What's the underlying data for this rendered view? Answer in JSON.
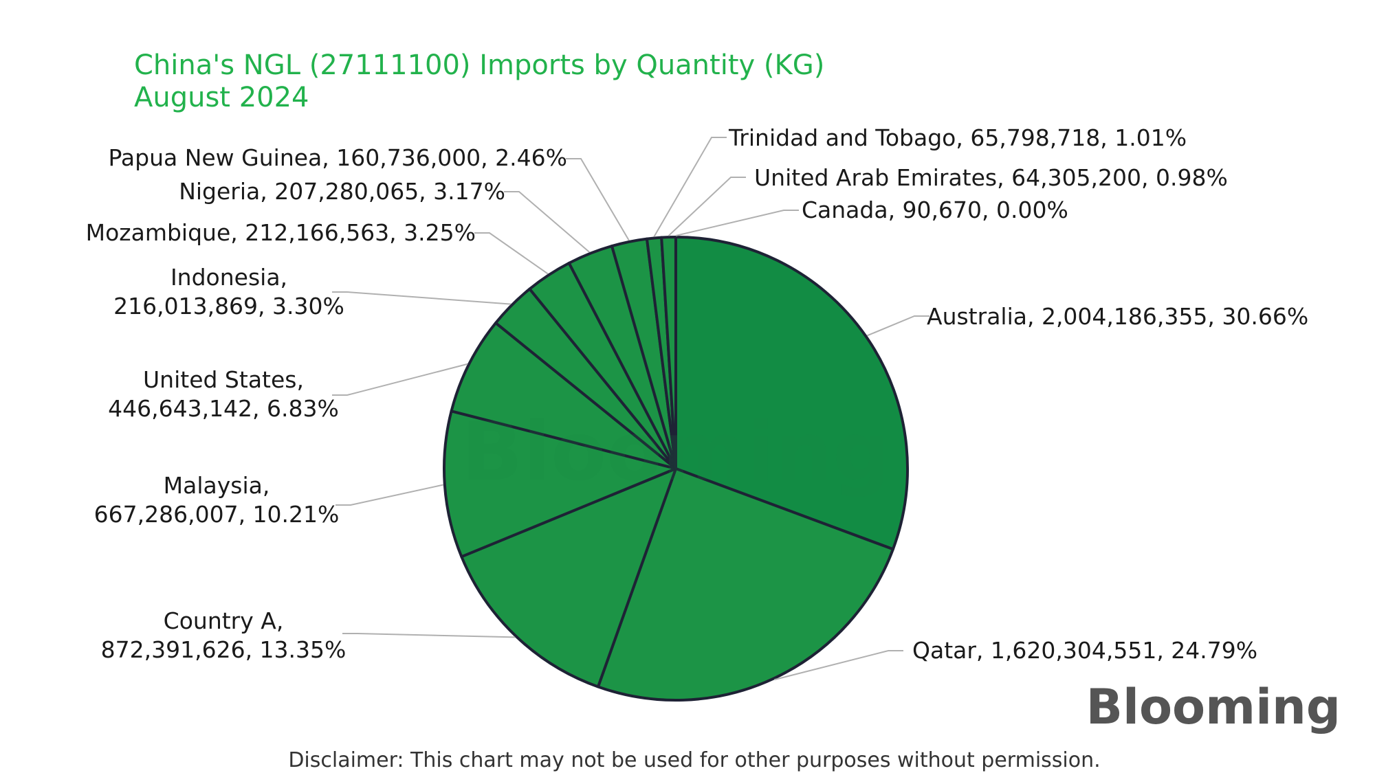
{
  "chart_data": {
    "type": "pie",
    "title": "China's NGL (27111100) Imports by Quantity (KG)",
    "subtitle": "August 2024",
    "slices": [
      {
        "label": "Australia",
        "value": 2004186355,
        "value_text": "2,004,186,355",
        "pct": "30.66%",
        "color": "#128c44",
        "text": "Australia, 2,004,186,355, 30.66%"
      },
      {
        "label": "Qatar",
        "value": 1620304551,
        "value_text": "1,620,304,551",
        "pct": "24.79%",
        "color": "#1c9446",
        "text": "Qatar, 1,620,304,551, 24.79%"
      },
      {
        "label": "Country A",
        "value": 872391626,
        "value_text": "872,391,626",
        "pct": "13.35%",
        "color": "#1c9446",
        "text": [
          "Country A,",
          "872,391,626, 13.35%"
        ]
      },
      {
        "label": "Malaysia",
        "value": 667286007,
        "value_text": "667,286,007",
        "pct": "10.21%",
        "color": "#1c9446",
        "text": [
          "Malaysia,",
          "667,286,007, 10.21%"
        ]
      },
      {
        "label": "United States",
        "value": 446643142,
        "value_text": "446,643,142",
        "pct": "6.83%",
        "color": "#1c9446",
        "text": [
          "United States,",
          "446,643,142, 6.83%"
        ]
      },
      {
        "label": "Indonesia",
        "value": 216013869,
        "value_text": "216,013,869",
        "pct": "3.30%",
        "color": "#1c9446",
        "text": [
          "Indonesia,",
          "216,013,869, 3.30%"
        ]
      },
      {
        "label": "Mozambique",
        "value": 212166563,
        "value_text": "212,166,563",
        "pct": "3.25%",
        "color": "#1c9446",
        "text": "Mozambique, 212,166,563, 3.25%"
      },
      {
        "label": "Nigeria",
        "value": 207280065,
        "value_text": "207,280,065",
        "pct": "3.17%",
        "color": "#1c9446",
        "text": "Nigeria, 207,280,065, 3.17%"
      },
      {
        "label": "Papua New Guinea",
        "value": 160736000,
        "value_text": "160,736,000",
        "pct": "2.46%",
        "color": "#1c9446",
        "text": "Papua New Guinea, 160,736,000, 2.46%"
      },
      {
        "label": "Trinidad and Tobago",
        "value": 65798718,
        "value_text": "65,798,718",
        "pct": "1.01%",
        "color": "#1c9446",
        "text": "Trinidad and Tobago, 65,798,718, 1.01%"
      },
      {
        "label": "United Arab Emirates",
        "value": 64305200,
        "value_text": "64,305,200",
        "pct": "0.98%",
        "color": "#1c9446",
        "text": "United Arab Emirates, 64,305,200, 0.98%"
      },
      {
        "label": "Canada",
        "value": 90670,
        "value_text": "90,670",
        "pct": "0.00%",
        "color": "#1c9446",
        "text": "Canada, 90,670, 0.00%"
      }
    ],
    "start_angle": "12 o'clock",
    "direction": "clockwise",
    "legend": "none (labels with leader lines)"
  },
  "watermark": "Blooming",
  "logo": "Blooming",
  "disclaimer": "Disclaimer: This chart may not be used for other purposes without permission."
}
